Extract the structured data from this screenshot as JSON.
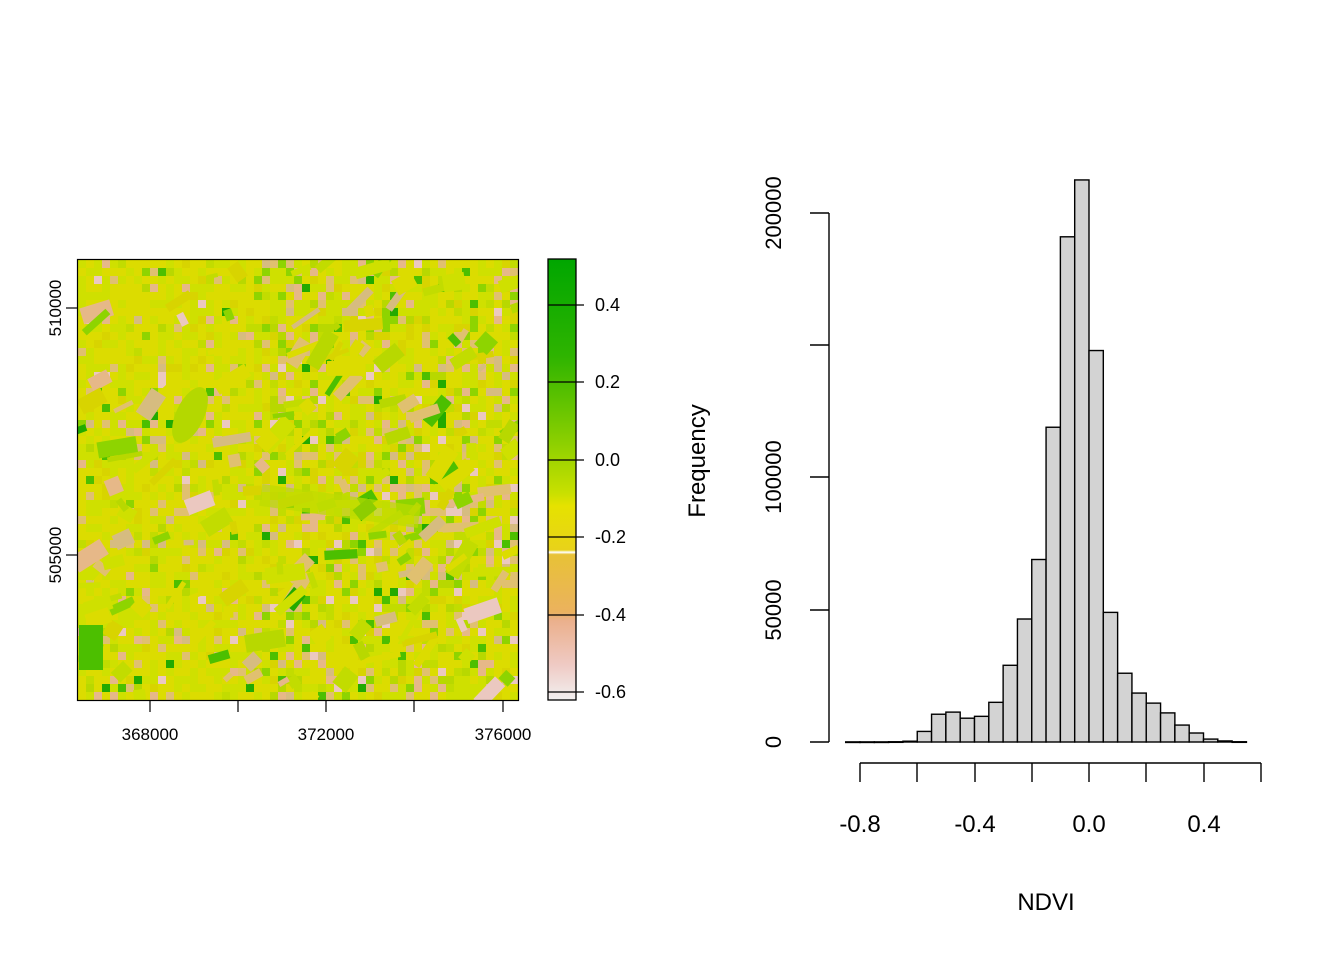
{
  "chart_data": [
    {
      "type": "heatmap",
      "title": "",
      "description": "NDVI raster map (false-color, terrain-like palette)",
      "xlabel": "",
      "ylabel": "",
      "x_ticks": [
        368000,
        370000,
        372000,
        374000,
        376000
      ],
      "x_tick_labels": [
        "368000",
        "",
        "372000",
        "",
        "376000"
      ],
      "y_ticks": [
        505000,
        510000
      ],
      "y_tick_labels": [
        "505000",
        "510000"
      ],
      "xlim": [
        366300,
        376300
      ],
      "ylim": [
        501000,
        511000
      ],
      "legend": {
        "type": "colorbar",
        "position": "right",
        "ticks": [
          0.4,
          0.2,
          0.0,
          -0.2,
          -0.4,
          -0.6
        ],
        "tick_labels": [
          "0.4",
          "0.2",
          "0.0",
          "-0.2",
          "-0.4",
          "-0.6"
        ],
        "range": [
          -0.63,
          0.52
        ],
        "colors": [
          {
            "value": 0.52,
            "hex": "#00a600"
          },
          {
            "value": 0.25,
            "hex": "#4cbf00"
          },
          {
            "value": 0.02,
            "hex": "#c8e000"
          },
          {
            "value": -0.05,
            "hex": "#e6e000"
          },
          {
            "value": -0.15,
            "hex": "#e8c032"
          },
          {
            "value": -0.3,
            "hex": "#ebb25e"
          },
          {
            "value": -0.42,
            "hex": "#ecb193"
          },
          {
            "value": -0.63,
            "hex": "#f2f2f2"
          }
        ]
      }
    },
    {
      "type": "bar",
      "subtype": "histogram",
      "title": "",
      "xlabel": "NDVI",
      "ylabel": "Frequency",
      "bin_width": 0.05,
      "bin_starts": [
        -0.85,
        -0.8,
        -0.75,
        -0.7,
        -0.65,
        -0.6,
        -0.55,
        -0.5,
        -0.45,
        -0.4,
        -0.35,
        -0.3,
        -0.25,
        -0.2,
        -0.15,
        -0.1,
        -0.05,
        0.0,
        0.05,
        0.1,
        0.15,
        0.2,
        0.25,
        0.3,
        0.35,
        0.4,
        0.45,
        0.5
      ],
      "values": [
        50,
        50,
        50,
        100,
        300,
        4000,
        10500,
        11300,
        9000,
        9700,
        15000,
        29000,
        46500,
        69000,
        119000,
        191000,
        212500,
        148000,
        49000,
        26000,
        18500,
        14700,
        11000,
        6400,
        3400,
        1100,
        400,
        100
      ],
      "x_ticks": [
        -0.8,
        -0.6,
        -0.4,
        -0.2,
        0.0,
        0.2,
        0.4,
        0.6
      ],
      "x_tick_labels": [
        "-0.8",
        "",
        "-0.4",
        "",
        "0.0",
        "",
        "0.4",
        ""
      ],
      "y_ticks": [
        0,
        50000,
        100000,
        150000,
        200000
      ],
      "y_tick_labels": [
        "0",
        "50000",
        "100000",
        "",
        "200000"
      ],
      "xlim": [
        -0.85,
        0.55
      ],
      "ylim": [
        0,
        215000
      ],
      "bar_color": "#d3d3d3",
      "edge_color": "#000000",
      "grid": false
    }
  ],
  "raster_panel": {
    "x_labels": [
      "368000",
      "372000",
      "376000"
    ],
    "y_labels": [
      "510000",
      "505000"
    ]
  },
  "colorbar": {
    "labels": [
      "0.4",
      "0.2",
      "0.0",
      "-0.2",
      "-0.4",
      "-0.6"
    ]
  },
  "histogram": {
    "xlabel": "NDVI",
    "ylabel": "Frequency",
    "x_labels": [
      "-0.8",
      "-0.4",
      "0.0",
      "0.4"
    ],
    "y_labels": [
      "0",
      "50000",
      "100000",
      "200000"
    ]
  }
}
